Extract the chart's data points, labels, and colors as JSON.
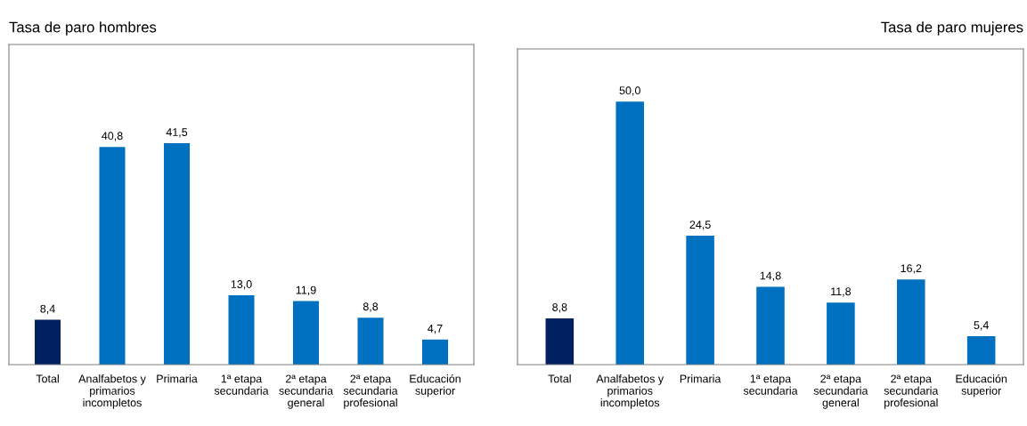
{
  "chart_data": [
    {
      "type": "bar",
      "title": "Tasa de paro hombres",
      "categories": [
        "Total",
        "Analfabetos y\nprimarios\nincompletos",
        "Primaria",
        "1ª etapa\nsecundaria",
        "2ª etapa\nsecundaria\ngeneral",
        "2ª etapa\nsecundaria\nprofesional",
        "Educación\nsuperior"
      ],
      "values": [
        8.4,
        40.8,
        41.5,
        13.0,
        11.9,
        8.8,
        4.7
      ],
      "value_labels": [
        "8,4",
        "40,8",
        "41,5",
        "13,0",
        "11,9",
        "8,8",
        "4,7"
      ],
      "colors": [
        "#002060",
        "#0070c0",
        "#0070c0",
        "#0070c0",
        "#0070c0",
        "#0070c0",
        "#0070c0"
      ],
      "ylim": [
        0,
        60
      ],
      "tick_labels": "x",
      "grid": false,
      "legend": false
    },
    {
      "type": "bar",
      "title": "Tasa de paro mujeres",
      "categories": [
        "Total",
        "Analfabetos y\nprimarios\nincompletos",
        "Primaria",
        "1ª etapa\nsecundaria",
        "2ª etapa\nsecundaria\ngeneral",
        "2ª etapa\nsecundaria\nprofesional",
        "Educación\nsuperior"
      ],
      "values": [
        8.8,
        50.0,
        24.5,
        14.8,
        11.8,
        16.2,
        5.4
      ],
      "value_labels": [
        "8,8",
        "50,0",
        "24,5",
        "14,8",
        "11,8",
        "16,2",
        "5,4"
      ],
      "colors": [
        "#002060",
        "#0070c0",
        "#0070c0",
        "#0070c0",
        "#0070c0",
        "#0070c0",
        "#0070c0"
      ],
      "ylim": [
        0,
        60
      ],
      "tick_labels": "x",
      "grid": false,
      "legend": false
    }
  ]
}
